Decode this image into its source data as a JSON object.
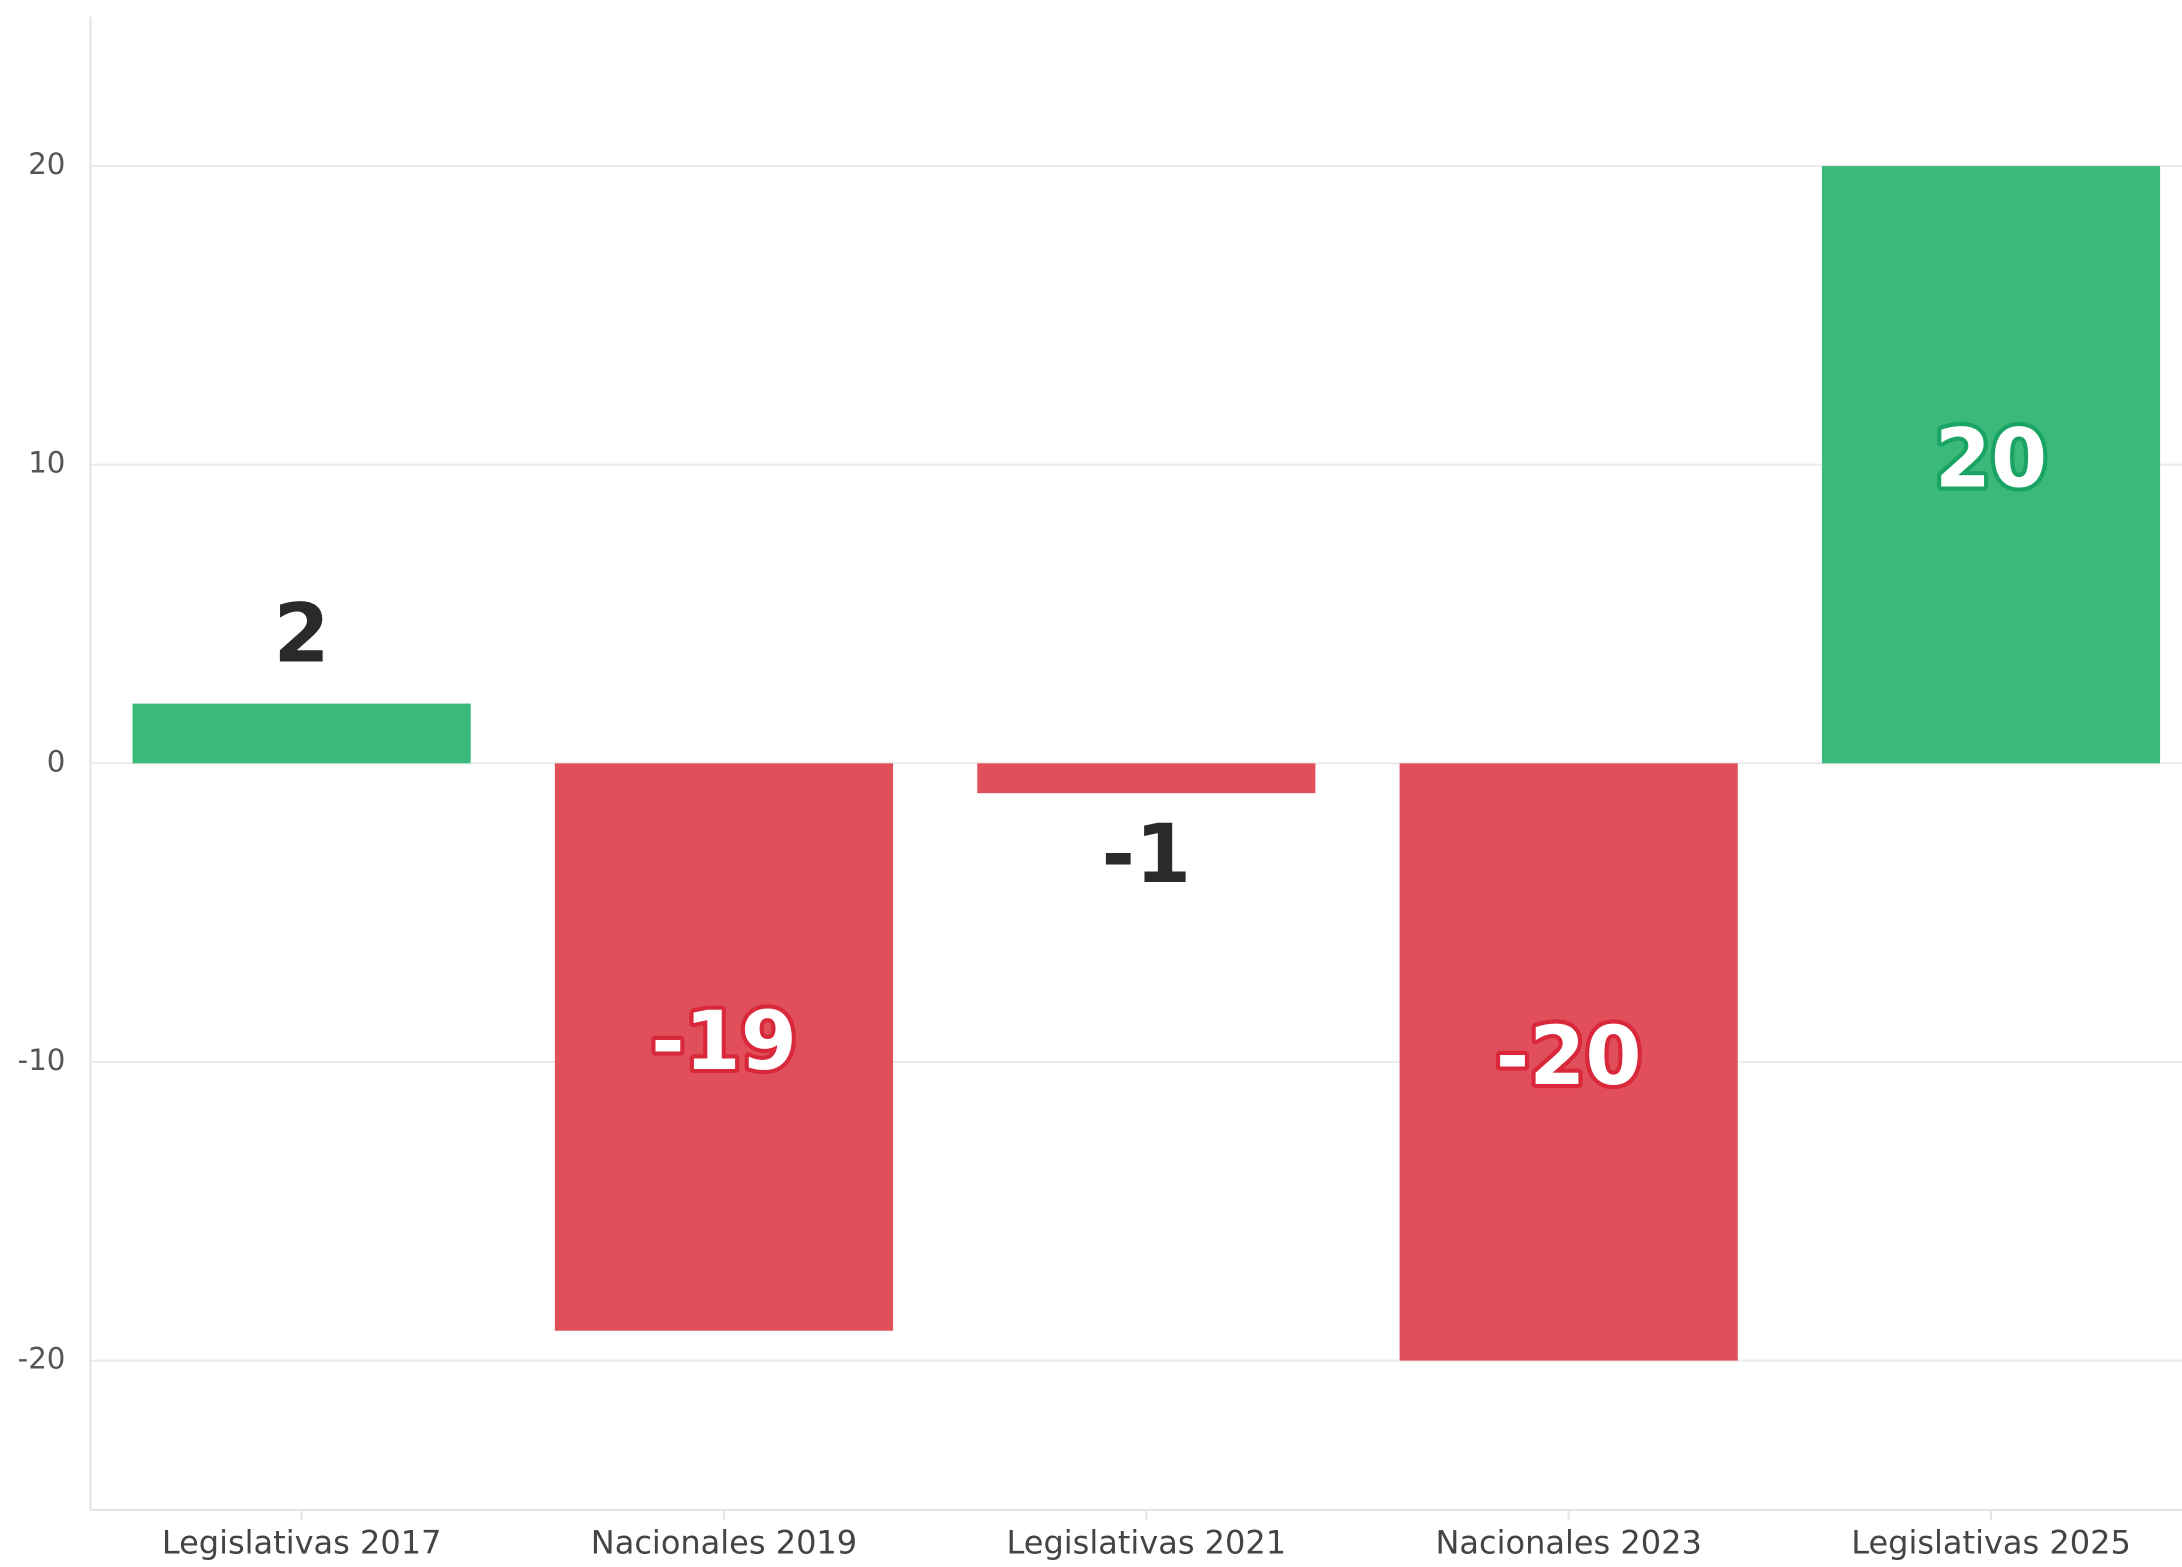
{
  "chart_data": {
    "type": "bar",
    "categories": [
      "Legislativas 2017",
      "Nacionales 2019",
      "Legislativas 2021",
      "Nacionales 2023",
      "Legislativas 2025"
    ],
    "values": [
      2,
      -19,
      -1,
      -20,
      20
    ],
    "positive_color": "#3bb97b",
    "negative_color": "#e04f5a",
    "ylim": [
      -25,
      25
    ],
    "yticks": [
      -20,
      -10,
      0,
      10,
      20
    ],
    "grid": true
  }
}
